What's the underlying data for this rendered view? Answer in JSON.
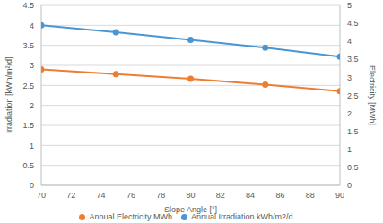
{
  "chart_data": {
    "type": "line",
    "x_label": "Slope Angle [°]",
    "y_label": "Irradiation [kWh/m²/d]",
    "y2_label": "Electricity [MWh]",
    "x": [
      70,
      75,
      80,
      85,
      90
    ],
    "series": [
      {
        "name": "Annual Irradiation kWh/m2/d",
        "color": "#4a96d2",
        "marker": "circle",
        "values": [
          4.0,
          3.83,
          3.64,
          3.44,
          3.22
        ]
      },
      {
        "name": "Annual Electricity MWh",
        "color": "#ed7d31",
        "marker": "circle",
        "axis": "y2",
        "values": [
          3.22,
          3.09,
          2.96,
          2.8,
          2.62
        ]
      }
    ],
    "xlim": [
      70,
      90
    ],
    "xticks": [
      70,
      72,
      74,
      76,
      78,
      80,
      82,
      84,
      86,
      88,
      90
    ],
    "ylim": [
      0,
      4.5
    ],
    "yticks": [
      0,
      0.5,
      1,
      1.5,
      2,
      2.5,
      3,
      3.5,
      4,
      4.5
    ],
    "y2lim": [
      0,
      5
    ],
    "y2ticks": [
      0,
      0.5,
      1,
      1.5,
      2,
      2.5,
      3,
      3.5,
      4,
      4.5,
      5
    ],
    "grid": true,
    "legend": "bottom"
  }
}
